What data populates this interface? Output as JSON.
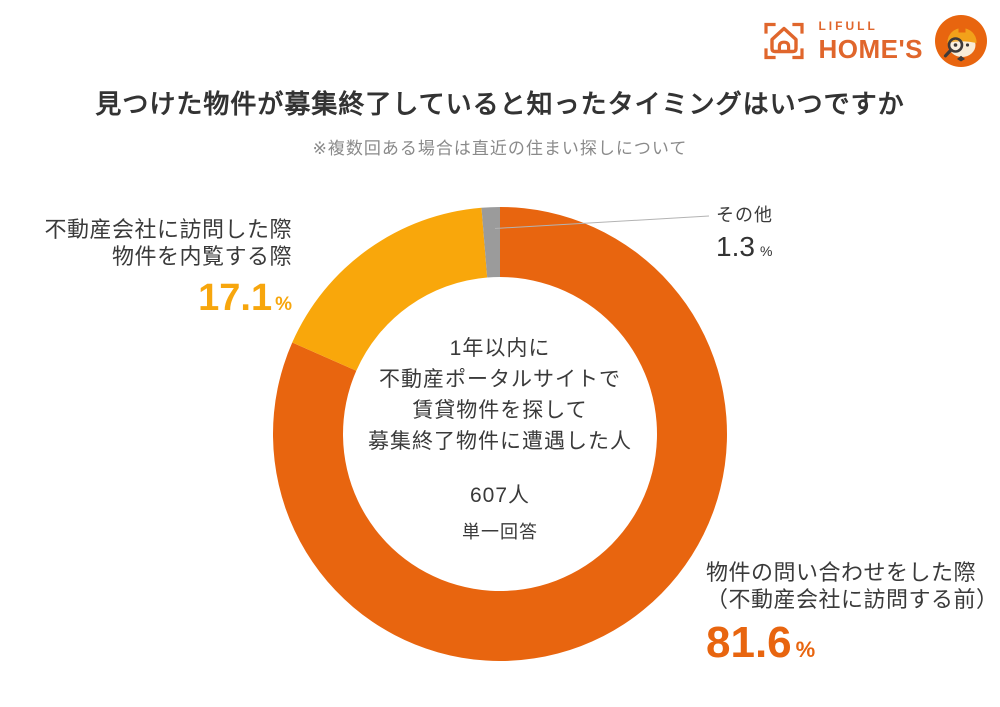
{
  "logo": {
    "lifull": "LIFULL",
    "homes": "HOME'S",
    "color": "#E0662C",
    "mascot_color": "#E8650F"
  },
  "chart_data": {
    "type": "pie",
    "donut": true,
    "title": "見つけた物件が募集終了していると知ったタイミングはいつですか",
    "subtitle": "※複数回ある場合は直近の住まい探しについて",
    "unit": "%",
    "start_angle_deg": 0,
    "direction": "clockwise",
    "segments": [
      {
        "label": "物件の問い合わせをした際（不動産会社に訪問する前）",
        "value": 81.6,
        "color": "#E8650F"
      },
      {
        "label": "不動産会社に訪問した際・物件を内覧する際",
        "value": 17.1,
        "color": "#F9A70B"
      },
      {
        "label": "その他",
        "value": 1.3,
        "color": "#9B9B9B"
      }
    ],
    "center_label": {
      "lines": [
        "1年以内に",
        "不動産ポータルサイトで",
        "賃貸物件を探して",
        "募集終了物件に遭遇した人"
      ],
      "sample": "607人",
      "method": "単一回答"
    }
  },
  "center": {
    "lines": [
      "1年以内に",
      "不動産ポータルサイトで",
      "賃貸物件を探して",
      "募集終了物件に遭遇した人"
    ],
    "sample": "607人",
    "method": "単一回答"
  },
  "callouts": {
    "left": {
      "line1": "不動産会社に訪問した際",
      "line2": "物件を内覧する際",
      "value": "17.1",
      "unit": "%",
      "color": "#F7A60D"
    },
    "other": {
      "label": "その他",
      "value": "1.3",
      "unit": "%"
    },
    "right": {
      "line1": "物件の問い合わせをした際",
      "line2": "（不動産会社に訪問する前）",
      "value": "81.6",
      "unit": "%",
      "color": "#E8650F"
    }
  }
}
